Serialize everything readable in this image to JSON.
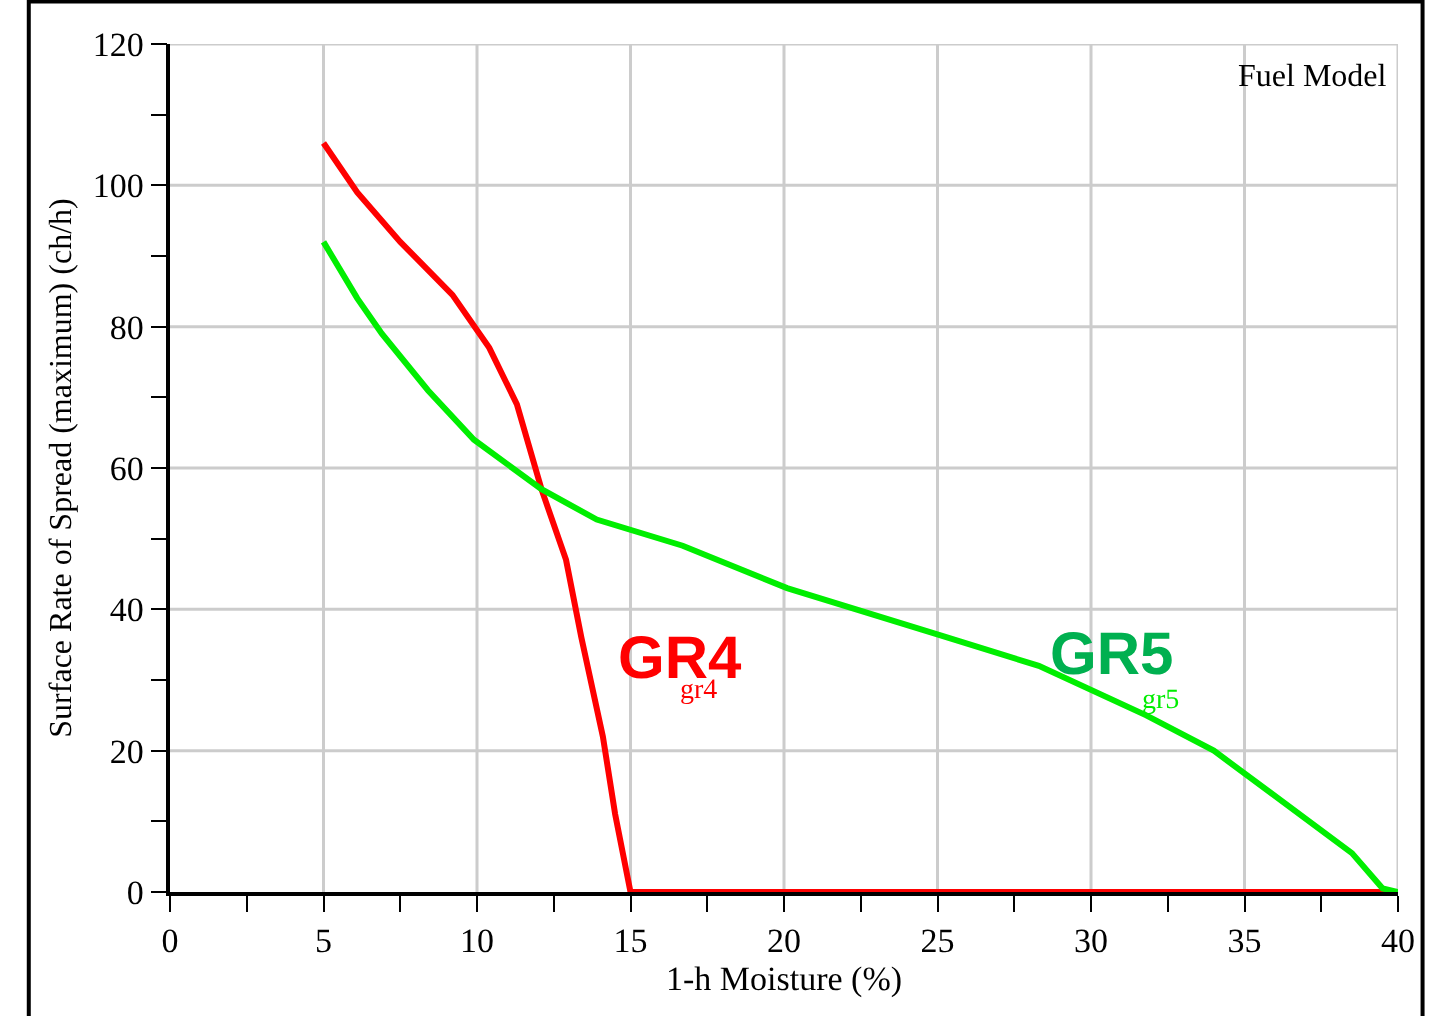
{
  "chart_data": {
    "type": "line",
    "xlabel": "1-h Moisture (%)",
    "ylabel": "Surface Rate of Spread (maximum) (ch/h)",
    "xlim": [
      0,
      40
    ],
    "ylim": [
      0,
      120
    ],
    "xticks": [
      0,
      {
        "value": 2.5,
        "label": null
      },
      5,
      {
        "value": 7.5,
        "label": null
      },
      10,
      {
        "value": 12.5,
        "label": null
      },
      15,
      {
        "value": 17.5,
        "label": null
      },
      20,
      {
        "value": 22.5,
        "label": null
      },
      25,
      {
        "value": 27.5,
        "label": null
      },
      30,
      {
        "value": 32.5,
        "label": null
      },
      35,
      {
        "value": 37.5,
        "label": null
      },
      40
    ],
    "yticks": [
      0,
      {
        "value": 10,
        "label": null
      },
      20,
      {
        "value": 30,
        "label": null
      },
      40,
      {
        "value": 50,
        "label": null
      },
      60,
      {
        "value": 70,
        "label": null
      },
      80,
      {
        "value": 90,
        "label": null
      },
      100,
      {
        "value": 110,
        "label": null
      },
      120
    ],
    "grid": true,
    "legend": false,
    "marker": "none",
    "line_style": "solid",
    "series": [
      {
        "name": "GR4",
        "color": "#ff0000",
        "x": [
          5,
          6.1,
          7.5,
          9.2,
          10.4,
          11.3,
          12.1,
          12.9,
          13.4,
          14.1,
          14.5,
          15,
          40
        ],
        "values": [
          106,
          99,
          92,
          84.5,
          77,
          69,
          57,
          47,
          36,
          22,
          11,
          0,
          0
        ]
      },
      {
        "name": "GR5",
        "color": "#00ee00",
        "x": [
          5,
          6.1,
          6.9,
          8.4,
          9.9,
          12.1,
          13.9,
          16.7,
          20.1,
          25.1,
          28.3,
          31.8,
          34,
          38.5,
          39.5,
          40
        ],
        "values": [
          92,
          84,
          79,
          71,
          64,
          57,
          52.7,
          49,
          43,
          36.3,
          32,
          25,
          20,
          5.5,
          0.5,
          0
        ]
      }
    ],
    "annotations": [
      "Fuel Model",
      "gr4",
      "gr5"
    ]
  }
}
